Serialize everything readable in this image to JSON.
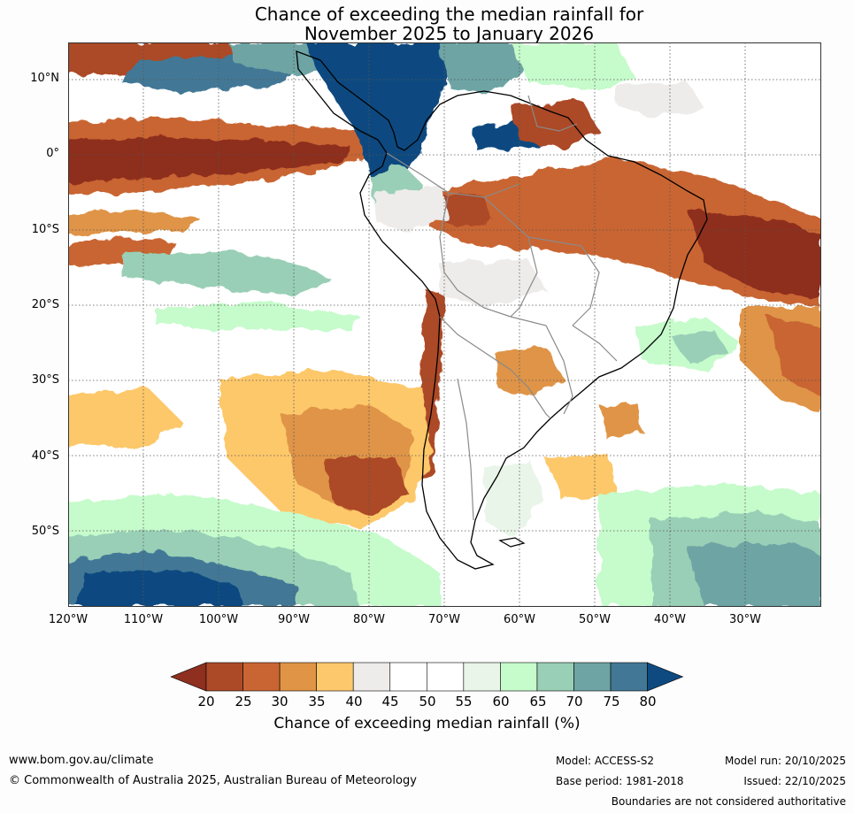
{
  "title_line1": "Chance of exceeding the median rainfall for",
  "title_line2": "November 2025 to January 2026",
  "lat_labels": [
    "10°N",
    "0°",
    "10°S",
    "20°S",
    "30°S",
    "40°S",
    "50°S"
  ],
  "lon_labels": [
    "120°W",
    "110°W",
    "100°W",
    "90°W",
    "80°W",
    "70°W",
    "60°W",
    "50°W",
    "40°W",
    "30°W"
  ],
  "colorbar": {
    "ticks": [
      "20",
      "25",
      "30",
      "35",
      "40",
      "45",
      "50",
      "55",
      "60",
      "65",
      "70",
      "75",
      "80"
    ],
    "colors": [
      "#8e2f1f",
      "#ac4a28",
      "#c96533",
      "#df9446",
      "#fdc86b",
      "#eeecea",
      "#ffffff",
      "#ffffff",
      "#eaf5ea",
      "#c6fbcb",
      "#99cfb6",
      "#6ea4a4",
      "#427896",
      "#0e4a80"
    ],
    "title": "Chance of exceeding median rainfall (%)"
  },
  "footer": {
    "url": "www.bom.gov.au/climate",
    "copyright": "© Commonwealth of Australia 2025, Australian Bureau of Meteorology",
    "model": "Model: ACCESS-S2",
    "base_period": "Base period: 1981-2018",
    "model_run": "Model run: 20/10/2025",
    "issued": "Issued: 22/10/2025",
    "disclaimer": "Boundaries are not considered authoritative"
  }
}
